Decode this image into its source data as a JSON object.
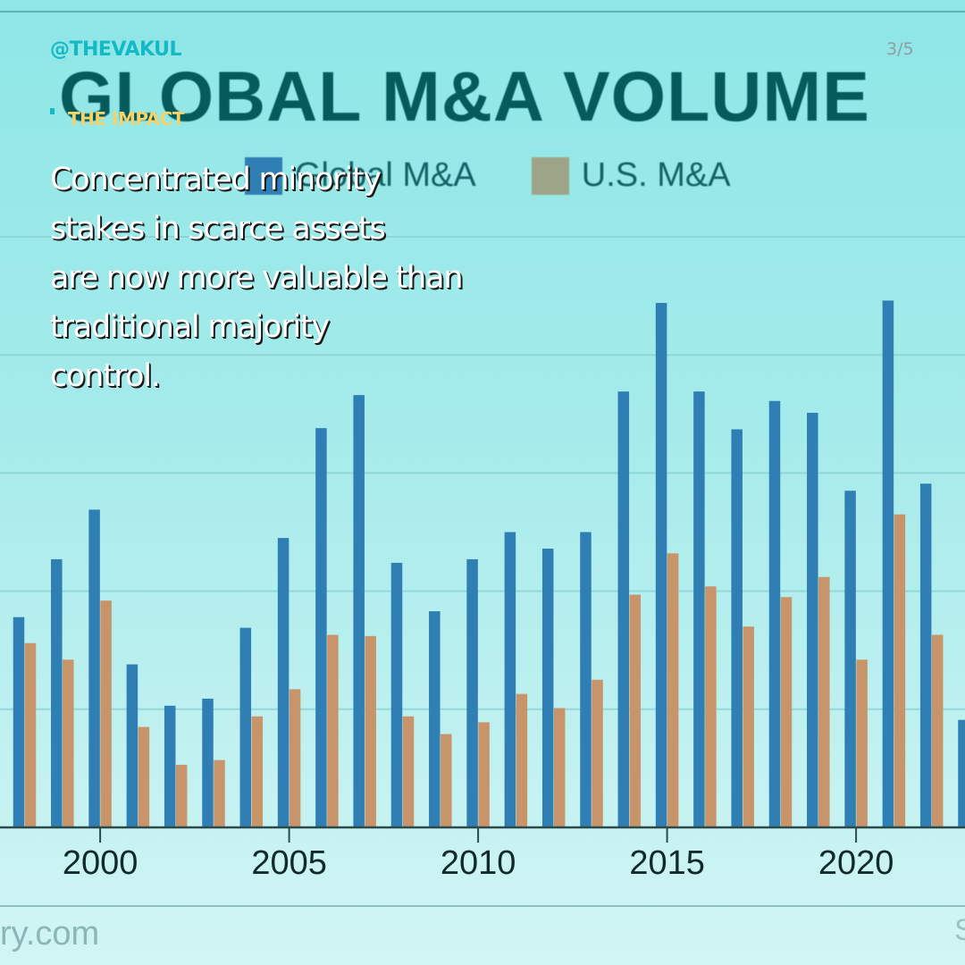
{
  "header": {
    "handle": "@THEVAKUL",
    "page_indicator": "3/5",
    "section_label": "THE IMPACT"
  },
  "body": {
    "lines": [
      "Concentrated minority",
      "stakes in scarce assets",
      "are now more valuable than",
      "traditional majority",
      "control."
    ]
  },
  "source": {
    "left_fragment": "ry.com",
    "right_fragment": "S"
  },
  "colors": {
    "global": "#2f7fb4",
    "us": "#c8956a",
    "us_legend_swatch": "#9ea487",
    "title": "#055a5c",
    "handle_accent": "#14b9c6",
    "section_accent": "#f3d36a"
  },
  "chart_data": {
    "type": "bar",
    "title": "GLOBAL M&A VOLUME",
    "xlabel": "",
    "ylabel": "",
    "y_units_note": "No y-axis labels visible; values are in gridline units (baseline = 0, each horizontal gridline = 1).",
    "ylim": [
      0,
      5
    ],
    "grid": true,
    "legend": {
      "placement": "top-center",
      "entries": [
        "Global M&A",
        "U.S. M&A"
      ]
    },
    "x_tick_labels": [
      "2000",
      "2005",
      "2010",
      "2015",
      "2020"
    ],
    "categories": [
      "1998",
      "1999",
      "2000",
      "2001",
      "2002",
      "2003",
      "2004",
      "2005",
      "2006",
      "2007",
      "2008",
      "2009",
      "2010",
      "2011",
      "2012",
      "2013",
      "2014",
      "2015",
      "2016",
      "2017",
      "2018",
      "2019",
      "2020",
      "2021",
      "2022",
      "2023"
    ],
    "series": [
      {
        "name": "Global M&A",
        "values": [
          1.78,
          2.27,
          2.69,
          1.38,
          1.03,
          1.09,
          1.69,
          2.45,
          3.38,
          3.66,
          2.24,
          1.83,
          2.27,
          2.5,
          2.36,
          2.5,
          3.69,
          4.44,
          3.69,
          3.37,
          3.61,
          3.51,
          2.85,
          4.46,
          2.91,
          0.91
        ]
      },
      {
        "name": "U.S. M&A",
        "values": [
          1.56,
          1.42,
          1.92,
          0.85,
          0.53,
          0.57,
          0.94,
          1.17,
          1.63,
          1.62,
          0.94,
          0.79,
          0.89,
          1.13,
          1.01,
          1.25,
          1.97,
          2.32,
          2.04,
          1.7,
          1.95,
          2.12,
          1.42,
          2.65,
          1.63,
          null
        ]
      }
    ]
  }
}
